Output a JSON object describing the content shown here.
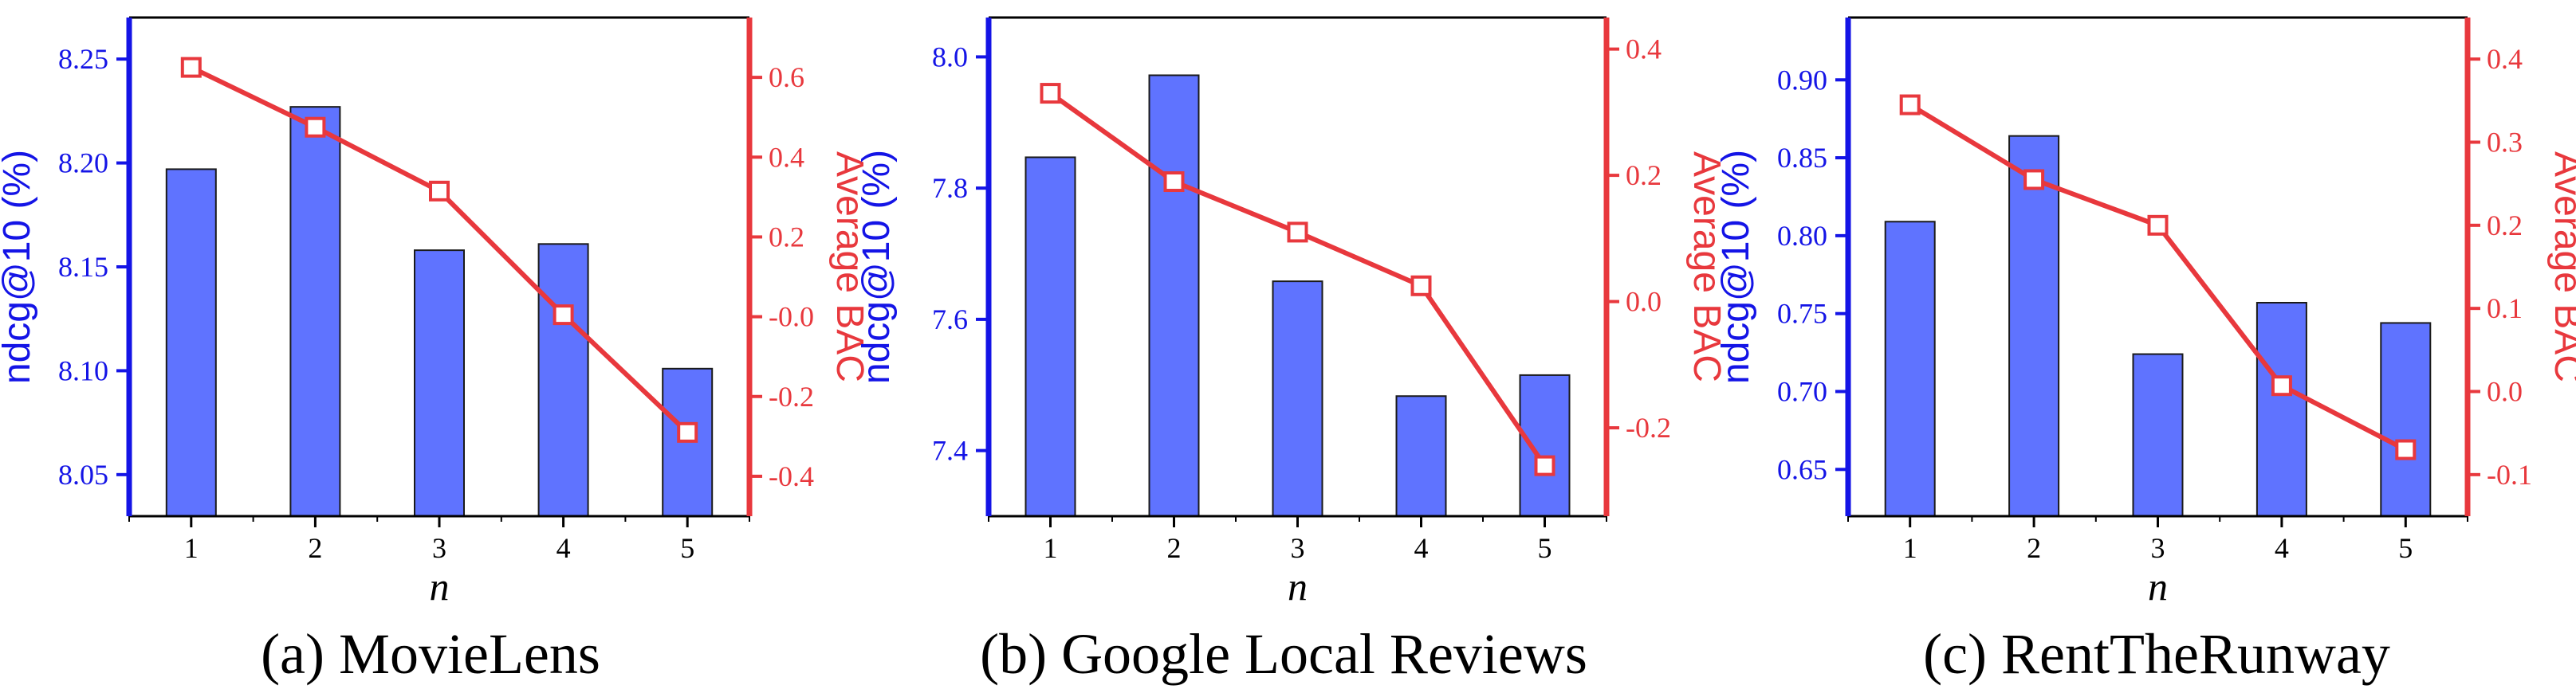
{
  "colors": {
    "bar_fill": "#5f73ff",
    "bar_stroke": "#1a1a1a",
    "left_axis": "#1414e6",
    "right_axis": "#e8383d",
    "line": "#e8383d",
    "marker_fill": "#ffffff"
  },
  "chart_data": [
    {
      "type": "bar+line",
      "caption": "(a) MovieLens",
      "xlabel": "n",
      "ylabel_left": "ndcg@10 (%)",
      "ylabel_right": "Average BAC",
      "categories": [
        "1",
        "2",
        "3",
        "4",
        "5"
      ],
      "ylim_left": [
        8.03,
        8.27
      ],
      "yticks_left": [
        8.05,
        8.1,
        8.15,
        8.2,
        8.25
      ],
      "ytick_labels_left": [
        "8.05",
        "8.10",
        "8.15",
        "8.20",
        "8.25"
      ],
      "ylim_right": [
        -0.5,
        0.75
      ],
      "yticks_right": [
        -0.4,
        -0.2,
        0.0,
        0.2,
        0.4,
        0.6
      ],
      "ytick_labels_right": [
        "-0.4",
        "-0.2",
        "-0.0",
        "0.2",
        "0.4",
        "0.6"
      ],
      "series": [
        {
          "axis": "left",
          "kind": "bar",
          "values": [
            8.197,
            8.227,
            8.158,
            8.161,
            8.101
          ]
        },
        {
          "axis": "right",
          "kind": "line",
          "values": [
            0.625,
            0.475,
            0.315,
            0.005,
            -0.29
          ]
        }
      ]
    },
    {
      "type": "bar+line",
      "caption": "(b) Google Local Reviews",
      "xlabel": "n",
      "ylabel_left": "ndcg@10 (%)",
      "ylabel_right": "Average BAC",
      "categories": [
        "1",
        "2",
        "3",
        "4",
        "5"
      ],
      "ylim_left": [
        7.3,
        8.06
      ],
      "yticks_left": [
        7.4,
        7.6,
        7.8,
        8.0
      ],
      "ytick_labels_left": [
        "7.4",
        "7.6",
        "7.8",
        "8.0"
      ],
      "ylim_right": [
        -0.34,
        0.45
      ],
      "yticks_right": [
        -0.2,
        0.0,
        0.2,
        0.4
      ],
      "ytick_labels_right": [
        "-0.2",
        "0.0",
        "0.2",
        "0.4"
      ],
      "series": [
        {
          "axis": "left",
          "kind": "bar",
          "values": [
            7.847,
            7.972,
            7.658,
            7.483,
            7.515
          ]
        },
        {
          "axis": "right",
          "kind": "line",
          "values": [
            0.33,
            0.19,
            0.11,
            0.025,
            -0.26
          ]
        }
      ]
    },
    {
      "type": "bar+line",
      "caption": "(c) RentTheRunway",
      "xlabel": "n",
      "ylabel_left": "ndcg@10 (%)",
      "ylabel_right": "Average BAC",
      "categories": [
        "1",
        "2",
        "3",
        "4",
        "5"
      ],
      "ylim_left": [
        0.62,
        0.94
      ],
      "yticks_left": [
        0.65,
        0.7,
        0.75,
        0.8,
        0.85,
        0.9
      ],
      "ytick_labels_left": [
        "0.65",
        "0.70",
        "0.75",
        "0.80",
        "0.85",
        "0.90"
      ],
      "ylim_right": [
        -0.15,
        0.45
      ],
      "yticks_right": [
        -0.1,
        0.0,
        0.1,
        0.2,
        0.3,
        0.4
      ],
      "ytick_labels_right": [
        "-0.1",
        "0.0",
        "0.1",
        "0.2",
        "0.3",
        "0.4"
      ],
      "series": [
        {
          "axis": "left",
          "kind": "bar",
          "values": [
            0.809,
            0.864,
            0.724,
            0.757,
            0.744
          ]
        },
        {
          "axis": "right",
          "kind": "line",
          "values": [
            0.345,
            0.255,
            0.2,
            0.007,
            -0.07
          ]
        }
      ]
    }
  ]
}
